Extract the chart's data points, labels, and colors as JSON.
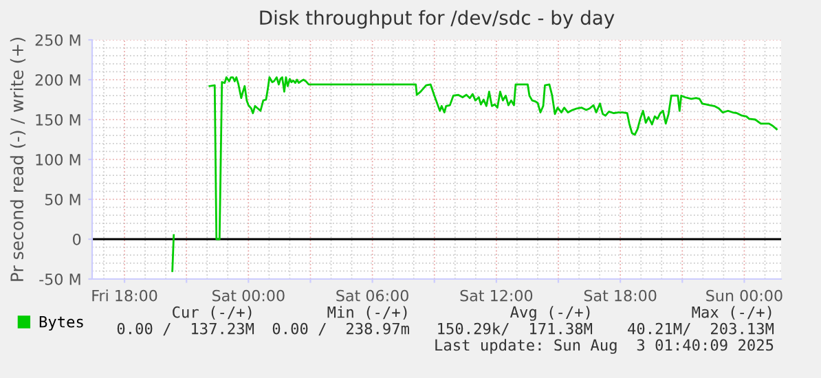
{
  "chart_data": {
    "type": "line",
    "title": "Disk throughput for /dev/sdc - by day",
    "ylabel": "Pr second read (-) / write (+)",
    "xlim": [
      "2025-08-01T16:26",
      "2025-08-03T01:47"
    ],
    "xticks": [
      {
        "value": "2025-08-01T18:00",
        "label": "Fri 18:00"
      },
      {
        "value": "2025-08-01T21:00",
        "label": null
      },
      {
        "value": "2025-08-02T00:00",
        "label": "Sat 00:00"
      },
      {
        "value": "2025-08-02T03:00",
        "label": null
      },
      {
        "value": "2025-08-02T06:00",
        "label": "Sat 06:00"
      },
      {
        "value": "2025-08-02T09:00",
        "label": null
      },
      {
        "value": "2025-08-02T12:00",
        "label": "Sat 12:00"
      },
      {
        "value": "2025-08-02T15:00",
        "label": null
      },
      {
        "value": "2025-08-02T18:00",
        "label": "Sat 18:00"
      },
      {
        "value": "2025-08-02T21:00",
        "label": null
      },
      {
        "value": "2025-08-03T00:00",
        "label": "Sun 00:00"
      }
    ],
    "ylim": [
      -50,
      250
    ],
    "yticks": [
      {
        "value": -50,
        "label": "-50 M"
      },
      0,
      {
        "value": 50,
        "label": "50 M"
      },
      {
        "value": 100,
        "label": "100 M"
      },
      {
        "value": 150,
        "label": "150 M"
      },
      {
        "value": 200,
        "label": "200 M"
      },
      {
        "value": 250,
        "label": "250 M"
      }
    ],
    "grid": true,
    "legend": "bottom",
    "ref_lines": [
      {
        "axis": "y",
        "value": 0,
        "color": "#000000"
      }
    ],
    "series": [
      {
        "color": "#00cc00",
        "x": [
          "2025-08-01T20:19",
          "2025-08-01T20:23"
        ],
        "values": [
          -40,
          5
        ]
      },
      {
        "name": "Bytes",
        "color": "#00cc00",
        "x": [
          "2025-08-01T22:07",
          "2025-08-01T22:22",
          "2025-08-01T22:27",
          "2025-08-01T22:36",
          "2025-08-01T22:43",
          "2025-08-01T22:51",
          "2025-08-01T22:56",
          "2025-08-01T23:04",
          "2025-08-01T23:09",
          "2025-08-01T23:15",
          "2025-08-01T23:20",
          "2025-08-01T23:25",
          "2025-08-01T23:31",
          "2025-08-01T23:39",
          "2025-08-01T23:44",
          "2025-08-01T23:49",
          "2025-08-01T23:55",
          "2025-08-02T00:00",
          "2025-08-02T00:08",
          "2025-08-02T00:13",
          "2025-08-02T00:19",
          "2025-08-02T00:27",
          "2025-08-02T00:35",
          "2025-08-02T00:43",
          "2025-08-02T00:51",
          "2025-08-02T00:56",
          "2025-08-02T01:01",
          "2025-08-02T01:09",
          "2025-08-02T01:14",
          "2025-08-02T01:22",
          "2025-08-02T01:28",
          "2025-08-02T01:33",
          "2025-08-02T01:38",
          "2025-08-02T01:44",
          "2025-08-02T01:49",
          "2025-08-02T01:54",
          "2025-08-02T02:00",
          "2025-08-02T02:05",
          "2025-08-02T02:10",
          "2025-08-02T02:16",
          "2025-08-02T02:21",
          "2025-08-02T02:26",
          "2025-08-02T02:32",
          "2025-08-02T02:40",
          "2025-08-02T02:47",
          "2025-08-02T02:55",
          "2025-08-02T08:06",
          "2025-08-02T08:09",
          "2025-08-02T08:20",
          "2025-08-02T08:36",
          "2025-08-02T08:49",
          "2025-08-02T09:00",
          "2025-08-02T09:10",
          "2025-08-02T09:16",
          "2025-08-02T09:21",
          "2025-08-02T09:29",
          "2025-08-02T09:34",
          "2025-08-02T09:45",
          "2025-08-02T09:55",
          "2025-08-02T10:09",
          "2025-08-02T10:22",
          "2025-08-02T10:33",
          "2025-08-02T10:43",
          "2025-08-02T10:51",
          "2025-08-02T10:59",
          "2025-08-02T11:09",
          "2025-08-02T11:15",
          "2025-08-02T11:23",
          "2025-08-02T11:31",
          "2025-08-02T11:39",
          "2025-08-02T11:47",
          "2025-08-02T11:55",
          "2025-08-02T12:03",
          "2025-08-02T12:11",
          "2025-08-02T12:19",
          "2025-08-02T12:27",
          "2025-08-02T12:35",
          "2025-08-02T12:43",
          "2025-08-02T12:51",
          "2025-08-02T12:56",
          "2025-08-02T13:31",
          "2025-08-02T13:36",
          "2025-08-02T13:44",
          "2025-08-02T13:52",
          "2025-08-02T14:00",
          "2025-08-02T14:08",
          "2025-08-02T14:16",
          "2025-08-02T14:21",
          "2025-08-02T14:34",
          "2025-08-02T14:42",
          "2025-08-02T14:50",
          "2025-08-02T14:58",
          "2025-08-02T15:09",
          "2025-08-02T15:17",
          "2025-08-02T15:28",
          "2025-08-02T15:41",
          "2025-08-02T15:54",
          "2025-08-02T16:07",
          "2025-08-02T16:21",
          "2025-08-02T16:31",
          "2025-08-02T16:42",
          "2025-08-02T16:50",
          "2025-08-02T17:01",
          "2025-08-02T17:09",
          "2025-08-02T17:17",
          "2025-08-02T17:27",
          "2025-08-02T17:41",
          "2025-08-02T17:54",
          "2025-08-02T18:07",
          "2025-08-02T18:20",
          "2025-08-02T18:26",
          "2025-08-02T18:34",
          "2025-08-02T18:42",
          "2025-08-02T18:50",
          "2025-08-02T18:58",
          "2025-08-02T19:06",
          "2025-08-02T19:14",
          "2025-08-02T19:22",
          "2025-08-02T19:32",
          "2025-08-02T19:40",
          "2025-08-02T19:48",
          "2025-08-02T19:56",
          "2025-08-02T20:04",
          "2025-08-02T20:12",
          "2025-08-02T20:20",
          "2025-08-02T20:28",
          "2025-08-02T20:47",
          "2025-08-02T20:52",
          "2025-08-02T20:57",
          "2025-08-02T21:08",
          "2025-08-02T21:26",
          "2025-08-02T21:40",
          "2025-08-02T21:50",
          "2025-08-02T21:58",
          "2025-08-02T22:09",
          "2025-08-02T22:20",
          "2025-08-02T22:33",
          "2025-08-02T22:46",
          "2025-08-02T22:57",
          "2025-08-02T23:13",
          "2025-08-02T23:26",
          "2025-08-02T23:39",
          "2025-08-02T23:53",
          "2025-08-03T00:06",
          "2025-08-03T00:14",
          "2025-08-03T00:32",
          "2025-08-03T00:48",
          "2025-08-03T01:12",
          "2025-08-03T01:23",
          "2025-08-03T01:34"
        ],
        "values": [
          192,
          193,
          0,
          0,
          197,
          196,
          203,
          198,
          203,
          203,
          198,
          203,
          194,
          177,
          185,
          192,
          174,
          168,
          164,
          158,
          167,
          164,
          161,
          174,
          175,
          188,
          203,
          197,
          198,
          203,
          194,
          201,
          203,
          185,
          203,
          192,
          201,
          197,
          199,
          196,
          200,
          196,
          198,
          200,
          198,
          194,
          194,
          181,
          185,
          193,
          194,
          180,
          168,
          161,
          167,
          159,
          167,
          168,
          180,
          181,
          178,
          181,
          177,
          182,
          174,
          178,
          169,
          175,
          167,
          185,
          167,
          169,
          165,
          185,
          174,
          180,
          168,
          174,
          168,
          194,
          194,
          180,
          174,
          173,
          171,
          159,
          167,
          193,
          194,
          180,
          157,
          165,
          159,
          165,
          159,
          162,
          164,
          165,
          162,
          164,
          168,
          159,
          170,
          157,
          155,
          160,
          158,
          159,
          159,
          158,
          145,
          133,
          131,
          138,
          151,
          161,
          146,
          153,
          144,
          154,
          151,
          158,
          161,
          145,
          157,
          180,
          180,
          161,
          180,
          178,
          176,
          177,
          176,
          170,
          169,
          168,
          167,
          164,
          159,
          161,
          159,
          158,
          155,
          154,
          151,
          150,
          145,
          145,
          142,
          138
        ]
      }
    ],
    "annotations": [
      "Cur (-/+)",
      "Min (-/+)",
      "Avg (-/+)",
      "Max (-/+)",
      "0.00 /  137.23M",
      "0.00 /  238.97m",
      "150.29k/  171.38M",
      "40.21M/  203.13M",
      "Last update: Sun Aug  3 01:40:09 2025"
    ]
  }
}
